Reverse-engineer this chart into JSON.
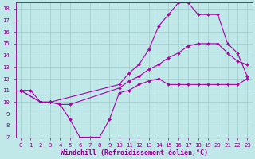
{
  "title": "",
  "xlabel": "Windchill (Refroidissement éolien,°C)",
  "ylabel": "",
  "xlim": [
    -0.5,
    23.5
  ],
  "ylim": [
    7,
    18.5
  ],
  "xticks": [
    0,
    1,
    2,
    3,
    4,
    5,
    6,
    7,
    8,
    9,
    10,
    11,
    12,
    13,
    14,
    15,
    16,
    17,
    18,
    19,
    20,
    21,
    22,
    23
  ],
  "yticks": [
    7,
    8,
    9,
    10,
    11,
    12,
    13,
    14,
    15,
    16,
    17,
    18
  ],
  "bg_color": "#c0e8e8",
  "grid_color": "#a0cccc",
  "line_color": "#aa00aa",
  "lines": [
    {
      "x": [
        0,
        1,
        2,
        3,
        4,
        5,
        6,
        7,
        8,
        9,
        10,
        11,
        12,
        13,
        14,
        15,
        16,
        17,
        18,
        19,
        20,
        21,
        22,
        23
      ],
      "y": [
        11,
        11,
        10,
        10,
        9.8,
        8.5,
        7.0,
        7.0,
        7.0,
        8.5,
        10.8,
        11.0,
        11.5,
        11.8,
        12.0,
        11.5,
        11.5,
        11.5,
        11.5,
        11.5,
        11.5,
        11.5,
        11.5,
        12.0
      ]
    },
    {
      "x": [
        0,
        2,
        3,
        4,
        5,
        10,
        11,
        12,
        13,
        14,
        15,
        16,
        17,
        18,
        19,
        20,
        21,
        22,
        23
      ],
      "y": [
        11,
        10,
        10,
        9.8,
        9.8,
        11.2,
        11.8,
        12.2,
        12.8,
        13.2,
        13.8,
        14.2,
        14.8,
        15.0,
        15.0,
        15.0,
        14.2,
        13.5,
        13.2
      ]
    },
    {
      "x": [
        0,
        2,
        3,
        10,
        11,
        12,
        13,
        14,
        15,
        16,
        17,
        18,
        19,
        20,
        21,
        22,
        23
      ],
      "y": [
        11,
        10,
        10,
        11.5,
        12.5,
        13.2,
        14.5,
        16.5,
        17.5,
        18.5,
        18.5,
        17.5,
        17.5,
        17.5,
        15.0,
        14.2,
        12.2
      ]
    }
  ],
  "font_color": "#880088",
  "tick_fontsize": 5.2,
  "xlabel_fontsize": 6.0
}
